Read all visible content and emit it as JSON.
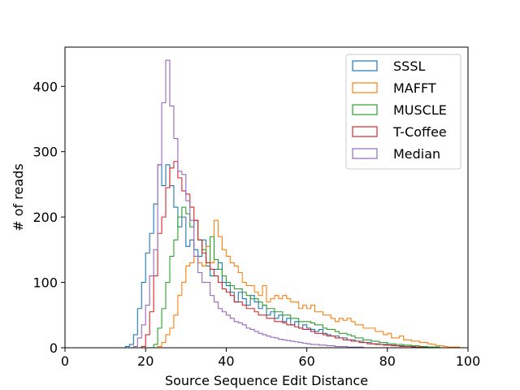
{
  "chart_data": {
    "type": "histogram-step",
    "title": "",
    "xlabel": "Source Sequence Edit Distance",
    "ylabel": "# of reads",
    "xlim": [
      0,
      100
    ],
    "ylim": [
      0,
      460
    ],
    "xticks": [
      0,
      20,
      40,
      60,
      80,
      100
    ],
    "yticks": [
      0,
      100,
      200,
      300,
      400
    ],
    "grid": false,
    "legend_position": "top-right",
    "bin_start": 0,
    "bin_width": 1,
    "series": [
      {
        "name": "SSSL",
        "color": "#1f77b4",
        "values": [
          0,
          0,
          0,
          0,
          0,
          0,
          0,
          0,
          0,
          0,
          0,
          0,
          0,
          0,
          0,
          2,
          5,
          20,
          60,
          100,
          145,
          175,
          220,
          280,
          248,
          280,
          248,
          215,
          185,
          200,
          155,
          165,
          150,
          140,
          165,
          125,
          110,
          120,
          130,
          100,
          95,
          85,
          70,
          85,
          75,
          65,
          80,
          70,
          60,
          65,
          50,
          55,
          45,
          50,
          40,
          45,
          35,
          40,
          30,
          35,
          30,
          28,
          25,
          28,
          22,
          20,
          18,
          18,
          15,
          15,
          12,
          12,
          10,
          10,
          8,
          8,
          6,
          6,
          5,
          5,
          4,
          4,
          3,
          3,
          2,
          2,
          2,
          1,
          1,
          1,
          1,
          1,
          0,
          0,
          0,
          0,
          0,
          0,
          0,
          0
        ]
      },
      {
        "name": "MAFFT",
        "color": "#ff7f0e",
        "values": [
          0,
          0,
          0,
          0,
          0,
          0,
          0,
          0,
          0,
          0,
          0,
          0,
          0,
          0,
          0,
          0,
          0,
          0,
          0,
          0,
          0,
          0,
          0,
          2,
          8,
          20,
          30,
          50,
          80,
          100,
          125,
          130,
          140,
          130,
          125,
          155,
          130,
          195,
          170,
          150,
          140,
          130,
          125,
          115,
          100,
          95,
          95,
          85,
          80,
          95,
          70,
          75,
          80,
          75,
          80,
          75,
          70,
          70,
          60,
          65,
          60,
          65,
          55,
          55,
          50,
          50,
          45,
          40,
          45,
          42,
          45,
          40,
          35,
          35,
          30,
          30,
          30,
          25,
          25,
          20,
          22,
          15,
          15,
          18,
          12,
          12,
          10,
          10,
          8,
          8,
          6,
          5,
          3,
          3,
          2,
          1,
          1,
          1,
          0,
          0
        ]
      },
      {
        "name": "MUSCLE",
        "color": "#2ca02c",
        "values": [
          0,
          0,
          0,
          0,
          0,
          0,
          0,
          0,
          0,
          0,
          0,
          0,
          0,
          0,
          0,
          0,
          0,
          0,
          0,
          0,
          0,
          0,
          5,
          30,
          60,
          100,
          140,
          165,
          200,
          215,
          205,
          185,
          195,
          165,
          150,
          130,
          170,
          135,
          120,
          110,
          100,
          95,
          90,
          90,
          85,
          80,
          75,
          75,
          70,
          65,
          60,
          60,
          55,
          55,
          50,
          50,
          45,
          45,
          40,
          40,
          40,
          38,
          35,
          35,
          30,
          28,
          28,
          25,
          22,
          22,
          20,
          18,
          15,
          15,
          12,
          12,
          10,
          10,
          8,
          8,
          6,
          6,
          5,
          5,
          4,
          4,
          3,
          3,
          2,
          2,
          1,
          1,
          1,
          0,
          0,
          0,
          0,
          0,
          0,
          0
        ]
      },
      {
        "name": "T-Coffee",
        "color": "#d62728",
        "values": [
          0,
          0,
          0,
          0,
          0,
          0,
          0,
          0,
          0,
          0,
          0,
          0,
          0,
          0,
          0,
          0,
          0,
          0,
          0,
          2,
          20,
          55,
          110,
          175,
          200,
          245,
          275,
          285,
          260,
          240,
          235,
          215,
          195,
          165,
          145,
          130,
          120,
          110,
          100,
          90,
          85,
          80,
          70,
          70,
          65,
          60,
          60,
          55,
          50,
          50,
          45,
          45,
          40,
          40,
          38,
          35,
          35,
          32,
          30,
          28,
          28,
          25,
          22,
          22,
          20,
          18,
          18,
          15,
          15,
          12,
          12,
          10,
          10,
          8,
          8,
          6,
          6,
          5,
          5,
          4,
          4,
          3,
          3,
          2,
          2,
          2,
          1,
          1,
          1,
          0,
          0,
          0,
          0,
          0,
          0,
          0,
          0,
          0,
          0,
          0
        ]
      },
      {
        "name": "Median",
        "color": "#9467bd",
        "values": [
          0,
          0,
          0,
          0,
          0,
          0,
          0,
          0,
          0,
          0,
          0,
          0,
          0,
          0,
          0,
          0,
          0,
          2,
          15,
          35,
          65,
          110,
          150,
          280,
          375,
          440,
          370,
          320,
          270,
          265,
          225,
          195,
          140,
          115,
          100,
          100,
          80,
          70,
          60,
          55,
          50,
          45,
          40,
          38,
          35,
          30,
          28,
          25,
          22,
          20,
          18,
          16,
          15,
          13,
          12,
          11,
          10,
          9,
          8,
          7,
          6,
          5,
          5,
          4,
          4,
          3,
          3,
          2,
          2,
          2,
          1,
          1,
          1,
          1,
          0,
          0,
          0,
          0,
          0,
          0,
          0,
          0,
          0,
          0,
          0,
          0,
          0,
          0,
          0,
          0,
          0,
          0,
          0,
          0,
          0,
          0,
          0,
          0,
          0,
          0
        ]
      }
    ]
  }
}
